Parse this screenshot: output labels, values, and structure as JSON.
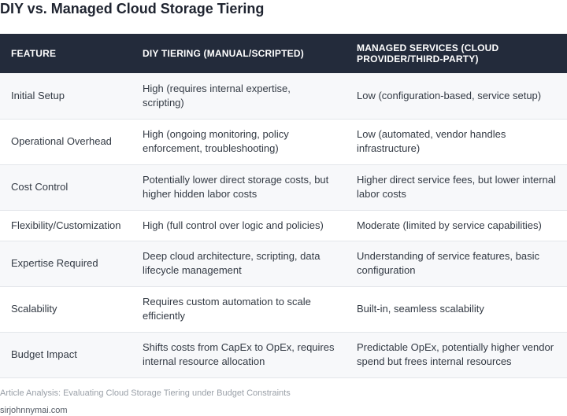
{
  "title": "DIY vs. Managed Cloud Storage Tiering",
  "table": {
    "headers": [
      "FEATURE",
      "DIY TIERING (MANUAL/SCRIPTED)",
      "MANAGED SERVICES (CLOUD PROVIDER/THIRD-PARTY)"
    ],
    "rows": [
      [
        "Initial Setup",
        "High (requires internal expertise, scripting)",
        "Low (configuration-based, service setup)"
      ],
      [
        "Operational Overhead",
        "High (ongoing monitoring, policy enforcement, troubleshooting)",
        "Low (automated, vendor handles infrastructure)"
      ],
      [
        "Cost Control",
        "Potentially lower direct storage costs, but higher hidden labor costs",
        "Higher direct service fees, but lower internal labor costs"
      ],
      [
        "Flexibility/Customization",
        "High (full control over logic and policies)",
        "Moderate (limited by service capabilities)"
      ],
      [
        "Expertise Required",
        "Deep cloud architecture, scripting, data lifecycle management",
        "Understanding of service features, basic configuration"
      ],
      [
        "Scalability",
        "Requires custom automation to scale efficiently",
        "Built-in, seamless scalability"
      ],
      [
        "Budget Impact",
        "Shifts costs from CapEx to OpEx, requires internal resource allocation",
        "Predictable OpEx, potentially higher vendor spend but frees internal resources"
      ]
    ]
  },
  "caption": "Article Analysis: Evaluating Cloud Storage Tiering under Budget Constraints",
  "source": "sirjohnnymai.com",
  "colors": {
    "header_bg": "#232b3b",
    "header_text": "#ffffff",
    "row_alt_bg": "#f7f8fa",
    "border": "#e3e6ea"
  }
}
